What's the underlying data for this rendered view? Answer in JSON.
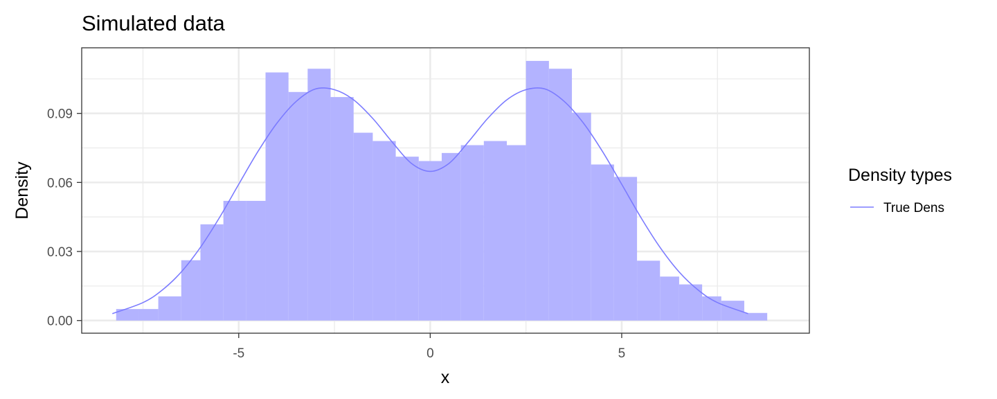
{
  "chart_data": {
    "type": "histogram",
    "title": "Simulated data",
    "xlabel": "x",
    "ylabel": "Density",
    "xlim": [
      -9.1,
      9.9
    ],
    "ylim": [
      -0.0055,
      0.1185
    ],
    "x_ticks": [
      {
        "value": -5,
        "label": "-5"
      },
      {
        "value": 0,
        "label": "0"
      },
      {
        "value": 5,
        "label": "5"
      }
    ],
    "y_ticks": [
      {
        "value": 0.0,
        "label": "0.00"
      },
      {
        "value": 0.03,
        "label": "0.03"
      },
      {
        "value": 0.06,
        "label": "0.06"
      },
      {
        "value": 0.09,
        "label": "0.09"
      }
    ],
    "grid": true,
    "legend": {
      "title": "Density types",
      "position": "right",
      "entries": [
        {
          "label": "True Dens",
          "color": "#7b7bff"
        }
      ]
    },
    "histogram": {
      "fill_color": "#b3b3ff",
      "bins": [
        {
          "x0": -8.2,
          "x1": -7.6,
          "density": 0.005
        },
        {
          "x0": -7.6,
          "x1": -7.1,
          "density": 0.005
        },
        {
          "x0": -7.1,
          "x1": -6.5,
          "density": 0.0105
        },
        {
          "x0": -6.5,
          "x1": -6.0,
          "density": 0.0262
        },
        {
          "x0": -6.0,
          "x1": -5.4,
          "density": 0.0418
        },
        {
          "x0": -5.4,
          "x1": -4.8,
          "density": 0.052
        },
        {
          "x0": -4.8,
          "x1": -4.3,
          "density": 0.052
        },
        {
          "x0": -4.3,
          "x1": -3.7,
          "density": 0.1078
        },
        {
          "x0": -3.7,
          "x1": -3.2,
          "density": 0.0993
        },
        {
          "x0": -3.2,
          "x1": -2.6,
          "density": 0.1094
        },
        {
          "x0": -2.6,
          "x1": -2.0,
          "density": 0.0971
        },
        {
          "x0": -2.0,
          "x1": -1.5,
          "density": 0.0816
        },
        {
          "x0": -1.5,
          "x1": -0.9,
          "density": 0.078
        },
        {
          "x0": -0.9,
          "x1": -0.3,
          "density": 0.0712
        },
        {
          "x0": -0.3,
          "x1": 0.3,
          "density": 0.0693
        },
        {
          "x0": 0.3,
          "x1": 0.8,
          "density": 0.0728
        },
        {
          "x0": 0.8,
          "x1": 1.4,
          "density": 0.0762
        },
        {
          "x0": 1.4,
          "x1": 2.0,
          "density": 0.078
        },
        {
          "x0": 2.0,
          "x1": 2.5,
          "density": 0.0762
        },
        {
          "x0": 2.5,
          "x1": 3.1,
          "density": 0.1128
        },
        {
          "x0": 3.1,
          "x1": 3.7,
          "density": 0.1094
        },
        {
          "x0": 3.7,
          "x1": 4.2,
          "density": 0.0903
        },
        {
          "x0": 4.2,
          "x1": 4.8,
          "density": 0.0678
        },
        {
          "x0": 4.8,
          "x1": 5.4,
          "density": 0.0624
        },
        {
          "x0": 5.4,
          "x1": 6.0,
          "density": 0.026
        },
        {
          "x0": 6.0,
          "x1": 6.5,
          "density": 0.0191
        },
        {
          "x0": 6.5,
          "x1": 7.1,
          "density": 0.0157
        },
        {
          "x0": 7.1,
          "x1": 7.6,
          "density": 0.0105
        },
        {
          "x0": 7.6,
          "x1": 8.2,
          "density": 0.0086
        },
        {
          "x0": 8.2,
          "x1": 8.8,
          "density": 0.0033
        }
      ]
    },
    "series": [
      {
        "name": "True Dens",
        "type": "line",
        "color": "#7b7bff",
        "points": [
          {
            "x": -8.3,
            "y": 0.003
          },
          {
            "x": -7.5,
            "y": 0.0078
          },
          {
            "x": -7.0,
            "y": 0.0132
          },
          {
            "x": -6.5,
            "y": 0.0211
          },
          {
            "x": -6.0,
            "y": 0.0318
          },
          {
            "x": -5.5,
            "y": 0.0448
          },
          {
            "x": -5.0,
            "y": 0.0592
          },
          {
            "x": -4.5,
            "y": 0.0734
          },
          {
            "x": -4.0,
            "y": 0.0858
          },
          {
            "x": -3.5,
            "y": 0.0952
          },
          {
            "x": -3.0,
            "y": 0.1006
          },
          {
            "x": -2.5,
            "y": 0.1003
          },
          {
            "x": -2.0,
            "y": 0.0959
          },
          {
            "x": -1.5,
            "y": 0.0878
          },
          {
            "x": -1.0,
            "y": 0.0777
          },
          {
            "x": -0.5,
            "y": 0.0684
          },
          {
            "x": 0.0,
            "y": 0.0648
          },
          {
            "x": 0.5,
            "y": 0.0684
          },
          {
            "x": 1.0,
            "y": 0.0777
          },
          {
            "x": 1.5,
            "y": 0.0878
          },
          {
            "x": 2.0,
            "y": 0.0959
          },
          {
            "x": 2.5,
            "y": 0.1003
          },
          {
            "x": 3.0,
            "y": 0.1006
          },
          {
            "x": 3.5,
            "y": 0.0952
          },
          {
            "x": 4.0,
            "y": 0.0858
          },
          {
            "x": 4.5,
            "y": 0.0734
          },
          {
            "x": 5.0,
            "y": 0.0592
          },
          {
            "x": 5.5,
            "y": 0.0448
          },
          {
            "x": 6.0,
            "y": 0.0318
          },
          {
            "x": 6.5,
            "y": 0.0211
          },
          {
            "x": 7.0,
            "y": 0.0132
          },
          {
            "x": 7.5,
            "y": 0.0078
          },
          {
            "x": 8.3,
            "y": 0.003
          }
        ]
      }
    ]
  }
}
